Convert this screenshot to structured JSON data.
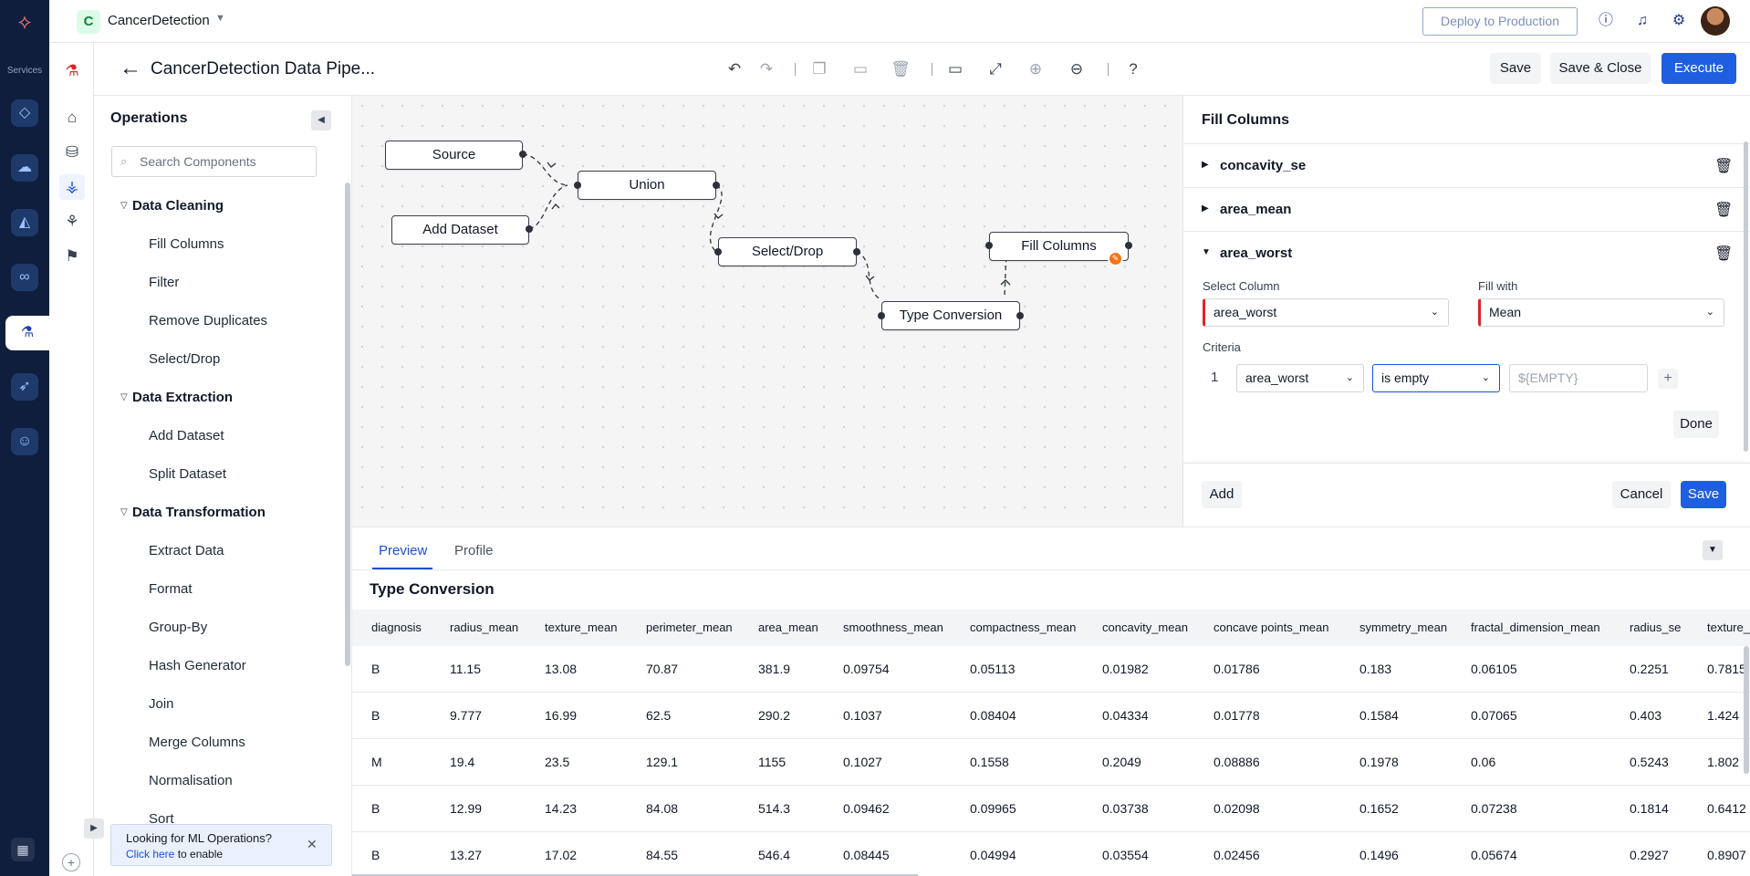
{
  "rail": {
    "services_label": "Services"
  },
  "header": {
    "project_initial": "C",
    "project_name": "CancerDetection",
    "deploy_label": "Deploy to Production"
  },
  "pipeline": {
    "title": "CancerDetection Data Pipe...",
    "save_label": "Save",
    "save_close_label": "Save & Close",
    "execute_label": "Execute"
  },
  "operations": {
    "title": "Operations",
    "search_placeholder": "Search Components",
    "groups": [
      {
        "label": "Data Cleaning",
        "items": [
          "Fill Columns",
          "Filter",
          "Remove Duplicates",
          "Select/Drop"
        ]
      },
      {
        "label": "Data Extraction",
        "items": [
          "Add Dataset",
          "Split Dataset"
        ]
      },
      {
        "label": "Data Transformation",
        "items": [
          "Extract Data",
          "Format",
          "Group-By",
          "Hash Generator",
          "Join",
          "Merge Columns",
          "Normalisation",
          "Sort"
        ]
      }
    ],
    "banner_line1": "Looking for ML Operations?",
    "banner_link": "Click here",
    "banner_rest": " to enable"
  },
  "canvas": {
    "nodes": [
      "Source",
      "Add Dataset",
      "Union",
      "Select/Drop",
      "Type Conversion",
      "Fill Columns"
    ]
  },
  "fill_columns": {
    "title": "Fill Columns",
    "sections": [
      "concavity_se",
      "area_mean",
      "area_worst"
    ],
    "select_column_label": "Select Column",
    "select_column_value": "area_worst",
    "fill_with_label": "Fill with",
    "fill_with_value": "Mean",
    "criteria_label": "Criteria",
    "criteria_num": "1",
    "criteria_column": "area_worst",
    "criteria_operator": "is empty",
    "criteria_value_placeholder": "${EMPTY}",
    "done_label": "Done",
    "add_label": "Add",
    "cancel_label": "Cancel",
    "save_label": "Save"
  },
  "preview": {
    "tabs": [
      "Preview",
      "Profile"
    ],
    "title": "Type Conversion",
    "columns": [
      "diagnosis",
      "radius_mean",
      "texture_mean",
      "perimeter_mean",
      "area_mean",
      "smoothness_mean",
      "compactness_mean",
      "concavity_mean",
      "concave points_mean",
      "symmetry_mean",
      "fractal_dimension_mean",
      "radius_se",
      "texture_"
    ],
    "rows": [
      [
        "B",
        "11.15",
        "13.08",
        "70.87",
        "381.9",
        "0.09754",
        "0.05113",
        "0.01982",
        "0.01786",
        "0.183",
        "0.06105",
        "0.2251",
        "0.7815"
      ],
      [
        "B",
        "9.777",
        "16.99",
        "62.5",
        "290.2",
        "0.1037",
        "0.08404",
        "0.04334",
        "0.01778",
        "0.1584",
        "0.07065",
        "0.403",
        "1.424"
      ],
      [
        "M",
        "19.4",
        "23.5",
        "129.1",
        "1155",
        "0.1027",
        "0.1558",
        "0.2049",
        "0.08886",
        "0.1978",
        "0.06",
        "0.5243",
        "1.802"
      ],
      [
        "B",
        "12.99",
        "14.23",
        "84.08",
        "514.3",
        "0.09462",
        "0.09965",
        "0.03738",
        "0.02098",
        "0.1652",
        "0.07238",
        "0.1814",
        "0.6412"
      ],
      [
        "B",
        "13.27",
        "17.02",
        "84.55",
        "546.4",
        "0.08445",
        "0.04994",
        "0.03554",
        "0.02456",
        "0.1496",
        "0.05674",
        "0.2927",
        "0.8907"
      ]
    ]
  }
}
